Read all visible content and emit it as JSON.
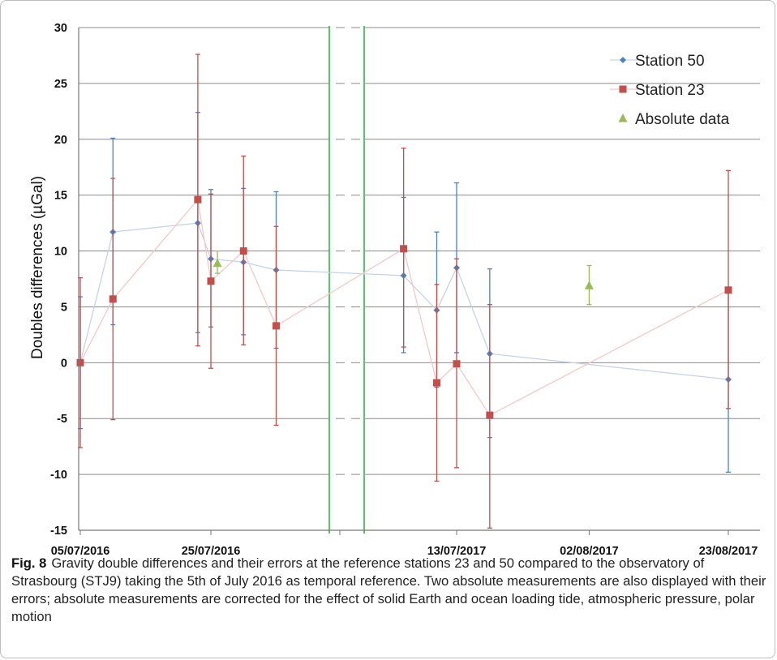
{
  "figure": {
    "caption_label": "Fig. 8",
    "caption_text": "Gravity double differences and their errors at the reference stations 23 and 50 compared to the observatory of Strasbourg (STJ9) taking the 5th of July 2016 as temporal reference. Two absolute measurements are also displayed with their errors; absolute measurements are corrected for the effect of solid Earth and ocean loading tide, atmospheric pressure, polar motion"
  },
  "chart_data": {
    "type": "line",
    "title": "",
    "ylabel": "Doubles differences (µGal)",
    "xlabel": "",
    "ylim": [
      -15,
      30
    ],
    "yticks": [
      -15,
      -10,
      -5,
      0,
      5,
      10,
      15,
      20,
      25,
      30
    ],
    "grid": "horizontal",
    "legend_position": "top-right",
    "axis_break": "between 2016 and 2017 campaigns",
    "x_tick_labels": [
      "05/07/2016",
      "25/07/2016",
      "13/07/2017",
      "02/08/2017",
      "23/08/2017"
    ],
    "series": [
      {
        "name": "Station 50",
        "marker": "diamond",
        "color": "#4f81bd",
        "line_color": "#c6d3e6",
        "points": [
          {
            "x": "05/07/2016",
            "y": 0,
            "low": -5.9,
            "high": 5.9
          },
          {
            "x": "10/07/2016",
            "y": 11.7,
            "low": 3.4,
            "high": 20.1
          },
          {
            "x": "23/07/2016",
            "y": 12.5,
            "low": 2.7,
            "high": 22.4
          },
          {
            "x": "25/07/2016",
            "y": 9.3,
            "low": 3.2,
            "high": 15.5
          },
          {
            "x": "30/07/2016",
            "y": 9.0,
            "low": 2.5,
            "high": 15.6
          },
          {
            "x": "04/08/2016",
            "y": 8.3,
            "low": 1.3,
            "high": 15.3
          },
          {
            "x": "05/07/2017",
            "y": 7.8,
            "low": 0.9,
            "high": 14.8
          },
          {
            "x": "10/07/2017",
            "y": 4.7,
            "low": -2.2,
            "high": 11.7
          },
          {
            "x": "13/07/2017",
            "y": 8.5,
            "low": 0.9,
            "high": 16.1
          },
          {
            "x": "18/07/2017",
            "y": 0.8,
            "low": -6.7,
            "high": 8.4
          },
          {
            "x": "23/08/2017",
            "y": -1.5,
            "low": -9.8,
            "high": 6.7
          }
        ]
      },
      {
        "name": "Station 23",
        "marker": "square",
        "color": "#c0504d",
        "line_color": "#f2c9c8",
        "points": [
          {
            "x": "05/07/2016",
            "y": 0,
            "low": -7.6,
            "high": 7.6
          },
          {
            "x": "10/07/2016",
            "y": 5.7,
            "low": -5.1,
            "high": 16.5
          },
          {
            "x": "23/07/2016",
            "y": 14.6,
            "low": 1.5,
            "high": 27.6
          },
          {
            "x": "25/07/2016",
            "y": 7.3,
            "low": -0.5,
            "high": 15.1
          },
          {
            "x": "30/07/2016",
            "y": 10.0,
            "low": 1.6,
            "high": 18.5
          },
          {
            "x": "04/08/2016",
            "y": 3.3,
            "low": -5.6,
            "high": 12.2
          },
          {
            "x": "05/07/2017",
            "y": 10.2,
            "low": 1.4,
            "high": 19.2
          },
          {
            "x": "10/07/2017",
            "y": -1.8,
            "low": -10.6,
            "high": 7.0
          },
          {
            "x": "13/07/2017",
            "y": -0.1,
            "low": -9.4,
            "high": 9.3
          },
          {
            "x": "18/07/2017",
            "y": -4.7,
            "low": -14.8,
            "high": 5.2
          },
          {
            "x": "23/08/2017",
            "y": 6.5,
            "low": -4.1,
            "high": 17.2
          }
        ]
      },
      {
        "name": "Absolute data",
        "marker": "triangle",
        "color": "#9bbb59",
        "points": [
          {
            "x": "26/07/2016",
            "y": 8.9,
            "low": 8.0,
            "high": 10.0
          },
          {
            "x": "02/08/2017",
            "y": 6.9,
            "low": 5.2,
            "high": 8.7
          }
        ]
      }
    ]
  },
  "colors": {
    "grid": "#8c8c8c",
    "break_line": "#2eb84b",
    "axis": "#777777"
  }
}
